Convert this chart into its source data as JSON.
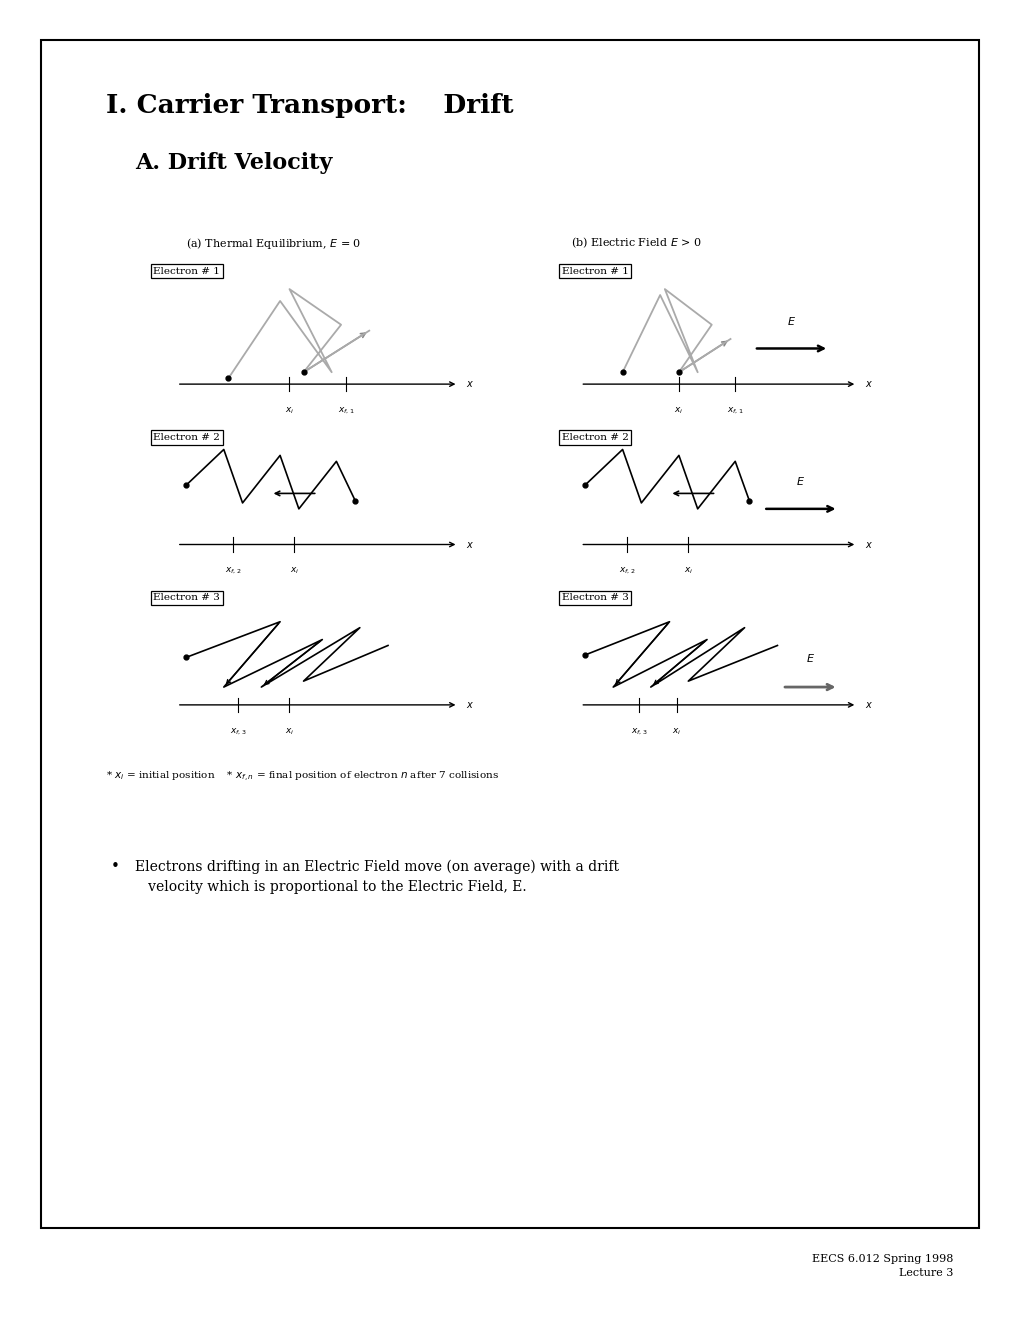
{
  "title1": "I. Carrier Transport:    Drift",
  "title2": "A. Drift Velocity",
  "bg_color": "#ffffff",
  "border_color": "#000000",
  "gray_color": "#aaaaaa",
  "footer": "EECS 6.012 Spring 1998\nLecture 3"
}
